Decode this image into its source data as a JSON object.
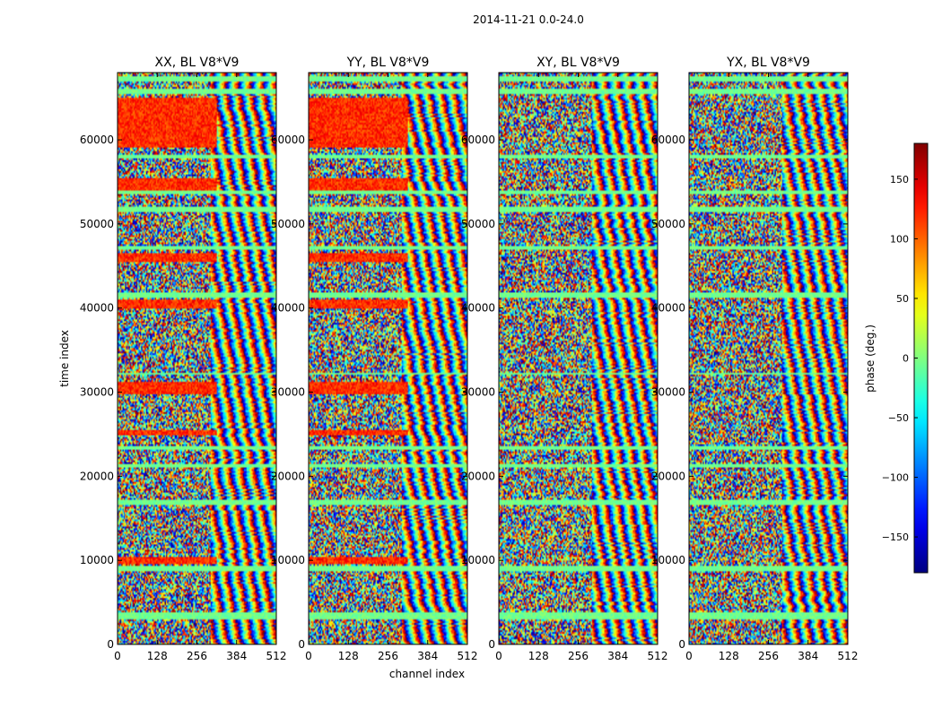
{
  "chart_data": {
    "type": "heatmap",
    "suptitle": "2014-11-21 0.0-24.0",
    "xlabel": "channel index",
    "ylabel": "time index",
    "xlim": [
      0,
      512
    ],
    "ylim": [
      0,
      68000
    ],
    "x_ticks": [
      0,
      128,
      256,
      384,
      512
    ],
    "y_ticks": [
      0,
      10000,
      20000,
      30000,
      40000,
      50000,
      60000
    ],
    "panels": [
      {
        "title": "XX, BL V8*V9",
        "pol": "XX"
      },
      {
        "title": "YY, BL V8*V9",
        "pol": "YY"
      },
      {
        "title": "XY, BL V8*V9",
        "pol": "XY"
      },
      {
        "title": "YX, BL V8*V9",
        "pol": "YX"
      }
    ],
    "colorbar": {
      "label": "phase (deg.)",
      "range": [
        -180,
        180
      ],
      "ticks": [
        -150,
        -100,
        -50,
        0,
        50,
        100,
        150
      ],
      "colormap": "jet"
    },
    "features": {
      "coherent_channel_max": 320,
      "coherent_phase_deg": 120,
      "coherent_time_bands": [
        [
          9500,
          10500
        ],
        [
          24800,
          25600
        ],
        [
          29800,
          31200
        ],
        [
          40000,
          41000
        ],
        [
          45500,
          46500
        ],
        [
          54000,
          55500
        ],
        [
          59000,
          65000
        ]
      ],
      "flagged_time_bands": [
        [
          3000,
          3800
        ],
        [
          8800,
          9400
        ],
        [
          16500,
          17200
        ],
        [
          21000,
          21500
        ],
        [
          23200,
          23600
        ],
        [
          32000,
          32400
        ],
        [
          41200,
          41800
        ],
        [
          47000,
          47400
        ],
        [
          51500,
          52000
        ],
        [
          53500,
          54000
        ],
        [
          57800,
          58300
        ],
        [
          65500,
          66000
        ],
        [
          67000,
          67500
        ]
      ]
    }
  }
}
